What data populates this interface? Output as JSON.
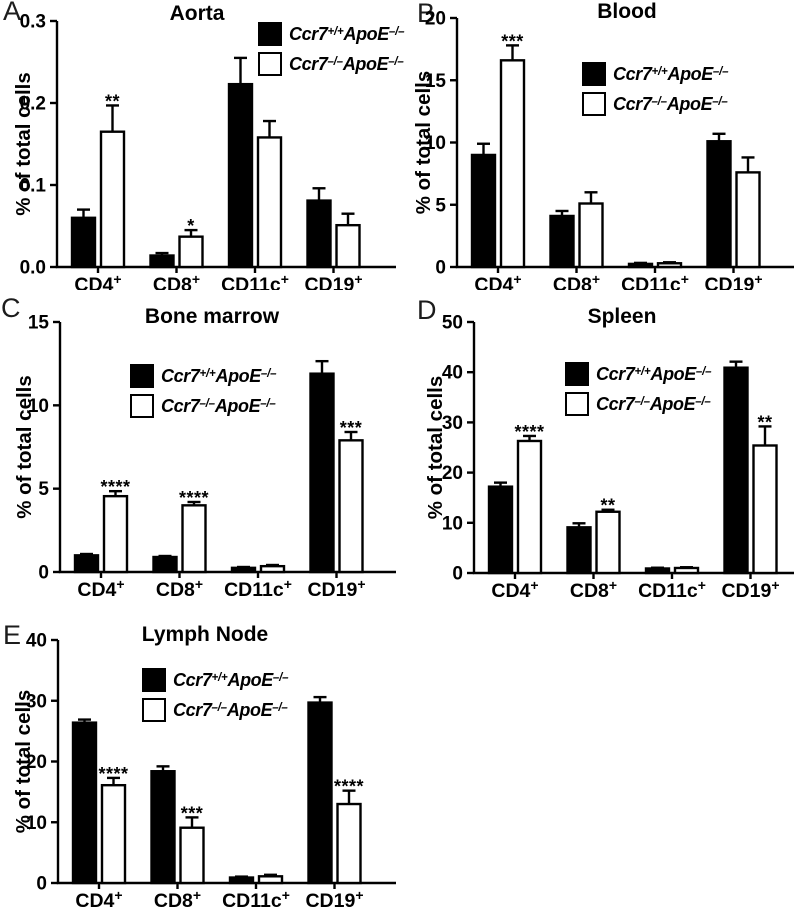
{
  "figure": {
    "ylabel": "% of total cells",
    "legend": [
      {
        "segments": [
          {
            "text": "Ccr7",
            "sup": "+/+"
          },
          {
            "text": "ApoE",
            "sup": "–/–"
          }
        ],
        "fill": "#000000"
      },
      {
        "segments": [
          {
            "text": "Ccr7",
            "sup": "–/–"
          },
          {
            "text": "ApoE",
            "sup": "–/–"
          }
        ],
        "fill": "#ffffff"
      }
    ],
    "colors": {
      "bar_black": "#000000",
      "bar_white": "#ffffff",
      "axis": "#000000"
    }
  },
  "chart_data": [
    {
      "panel": "A",
      "type": "bar",
      "title": "Aorta",
      "ylabel": "% of total cells",
      "categories": [
        "CD4+",
        "CD8+",
        "CD11c+",
        "CD19+"
      ],
      "ylim": [
        0,
        0.3
      ],
      "ytick_values": [
        0,
        0.1,
        0.2,
        0.3
      ],
      "ytick_labels": [
        "0.0",
        "0.1",
        "0.2",
        "0.3"
      ],
      "series": [
        {
          "name": "Ccr7+/+ApoE–/–",
          "fill": "#000000",
          "values": [
            0.06,
            0.014,
            0.223,
            0.081
          ],
          "errors": [
            0.01,
            0.003,
            0.032,
            0.015
          ]
        },
        {
          "name": "Ccr7–/–ApoE–/–",
          "fill": "#ffffff",
          "values": [
            0.165,
            0.037,
            0.158,
            0.051
          ],
          "errors": [
            0.032,
            0.008,
            0.02,
            0.014
          ]
        }
      ],
      "significance": [
        {
          "category": "CD4+",
          "series_index": 1,
          "label": "**"
        },
        {
          "category": "CD8+",
          "series_index": 1,
          "label": "*"
        }
      ]
    },
    {
      "panel": "B",
      "type": "bar",
      "title": "Blood",
      "ylabel": "% of total cells",
      "categories": [
        "CD4+",
        "CD8+",
        "CD11c+",
        "CD19+"
      ],
      "ylim": [
        0,
        20
      ],
      "ytick_values": [
        0,
        5,
        10,
        15,
        20
      ],
      "ytick_labels": [
        "0",
        "5",
        "10",
        "15",
        "20"
      ],
      "series": [
        {
          "name": "Ccr7+/+ApoE–/–",
          "fill": "#000000",
          "values": [
            9.0,
            4.1,
            0.25,
            10.1
          ],
          "errors": [
            0.9,
            0.4,
            0.08,
            0.6
          ]
        },
        {
          "name": "Ccr7–/–ApoE–/–",
          "fill": "#ffffff",
          "values": [
            16.6,
            5.1,
            0.3,
            7.6
          ],
          "errors": [
            1.2,
            0.9,
            0.08,
            1.2
          ]
        }
      ],
      "significance": [
        {
          "category": "CD4+",
          "series_index": 1,
          "label": "***"
        }
      ]
    },
    {
      "panel": "C",
      "type": "bar",
      "title": "Bone marrow",
      "ylabel": "% of total cells",
      "categories": [
        "CD4+",
        "CD8+",
        "CD11c+",
        "CD19+"
      ],
      "ylim": [
        0,
        15
      ],
      "ytick_values": [
        0,
        5,
        10,
        15
      ],
      "ytick_labels": [
        "0",
        "5",
        "10",
        "15"
      ],
      "series": [
        {
          "name": "Ccr7+/+ApoE–/–",
          "fill": "#000000",
          "values": [
            1.0,
            0.9,
            0.25,
            11.9
          ],
          "errors": [
            0.08,
            0.06,
            0.05,
            0.75
          ]
        },
        {
          "name": "Ccr7–/–ApoE–/–",
          "fill": "#ffffff",
          "values": [
            4.55,
            4.0,
            0.35,
            7.9
          ],
          "errors": [
            0.3,
            0.2,
            0.07,
            0.5
          ]
        }
      ],
      "significance": [
        {
          "category": "CD4+",
          "series_index": 1,
          "label": "****"
        },
        {
          "category": "CD8+",
          "series_index": 1,
          "label": "****"
        },
        {
          "category": "CD19+",
          "series_index": 1,
          "label": "***"
        }
      ]
    },
    {
      "panel": "D",
      "type": "bar",
      "title": "Spleen",
      "ylabel": "% of total cells",
      "categories": [
        "CD4+",
        "CD8+",
        "CD11c+",
        "CD19+"
      ],
      "ylim": [
        0,
        50
      ],
      "ytick_values": [
        0,
        10,
        20,
        30,
        40,
        50
      ],
      "ytick_labels": [
        "0",
        "10",
        "20",
        "30",
        "40",
        "50"
      ],
      "series": [
        {
          "name": "Ccr7+/+ApoE–/–",
          "fill": "#000000",
          "values": [
            17.2,
            9.1,
            0.9,
            40.9
          ],
          "errors": [
            0.8,
            0.8,
            0.15,
            1.2
          ]
        },
        {
          "name": "Ccr7–/–ApoE–/–",
          "fill": "#ffffff",
          "values": [
            26.3,
            12.2,
            1.0,
            25.4
          ],
          "errors": [
            1.0,
            0.4,
            0.15,
            3.8
          ]
        }
      ],
      "significance": [
        {
          "category": "CD4+",
          "series_index": 1,
          "label": "****"
        },
        {
          "category": "CD8+",
          "series_index": 1,
          "label": "**"
        },
        {
          "category": "CD19+",
          "series_index": 1,
          "label": "**"
        }
      ]
    },
    {
      "panel": "E",
      "type": "bar",
      "title": "Lymph Node",
      "ylabel": "% of total cells",
      "categories": [
        "CD4+",
        "CD8+",
        "CD11c+",
        "CD19+"
      ],
      "ylim": [
        0,
        40
      ],
      "ytick_values": [
        0,
        10,
        20,
        30,
        40
      ],
      "ytick_labels": [
        "0",
        "10",
        "20",
        "30",
        "40"
      ],
      "series": [
        {
          "name": "Ccr7+/+ApoE–/–",
          "fill": "#000000",
          "values": [
            26.4,
            18.4,
            0.9,
            29.7
          ],
          "errors": [
            0.5,
            0.8,
            0.15,
            0.9
          ]
        },
        {
          "name": "Ccr7–/–ApoE–/–",
          "fill": "#ffffff",
          "values": [
            16.1,
            9.1,
            1.1,
            13.0
          ],
          "errors": [
            1.2,
            1.7,
            0.25,
            2.2
          ]
        }
      ],
      "significance": [
        {
          "category": "CD4+",
          "series_index": 1,
          "label": "****"
        },
        {
          "category": "CD8+",
          "series_index": 1,
          "label": "***"
        },
        {
          "category": "CD19+",
          "series_index": 1,
          "label": "****"
        }
      ]
    }
  ]
}
